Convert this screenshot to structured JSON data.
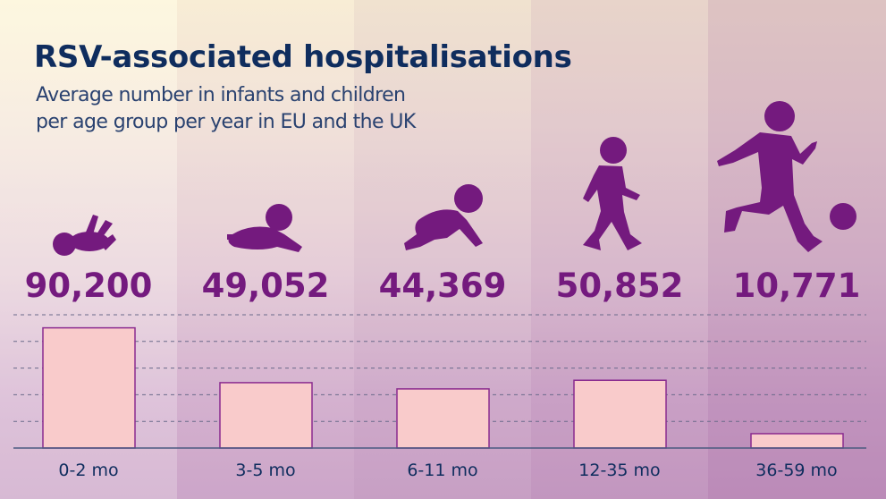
{
  "title": "RSV-associated hospitalisations",
  "subtitle_lines": [
    "Average number in infants and children",
    "per age group per year in EU and the UK"
  ],
  "colors": {
    "bar_fill": "#f9cbcb",
    "bar_stroke": "#8a2b8f",
    "value_text": "#741a7e",
    "silhouette": "#741a7e",
    "title": "#0f2d5e"
  },
  "icons": [
    "newborn-lying-icon",
    "baby-prone-icon",
    "baby-crawling-icon",
    "toddler-walking-icon",
    "child-kicking-ball-icon"
  ],
  "chart_data": {
    "type": "bar",
    "categories": [
      "0-2 mo",
      "3-5 mo",
      "6-11 mo",
      "12-35 mo",
      "36-59 mo"
    ],
    "values": [
      90200,
      49052,
      44369,
      50852,
      10771
    ],
    "value_labels": [
      "90,200",
      "49,052",
      "44,369",
      "50,852",
      "10,771"
    ],
    "ylim": [
      0,
      100000
    ],
    "grid": true,
    "grid_step": 20000
  }
}
